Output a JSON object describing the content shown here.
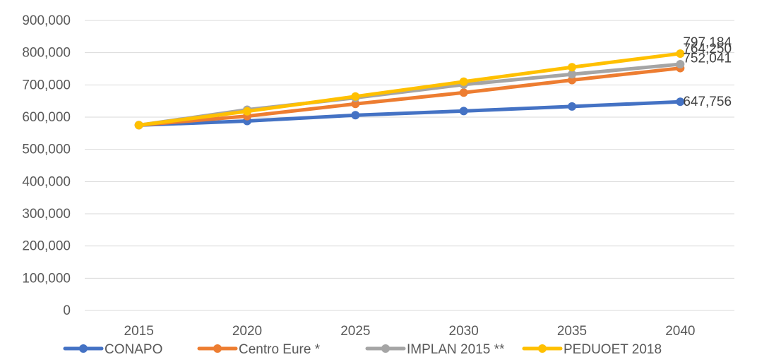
{
  "chart_data": {
    "type": "line",
    "x": [
      "2015",
      "2020",
      "2025",
      "2030",
      "2035",
      "2040"
    ],
    "ylim": [
      0,
      900000
    ],
    "yticks": [
      "0",
      "100,000",
      "200,000",
      "300,000",
      "400,000",
      "500,000",
      "600,000",
      "700,000",
      "800,000",
      "900,000"
    ],
    "grid": true,
    "legend_position": "bottom",
    "series": [
      {
        "name": "CONAPO",
        "color": "#4472c4",
        "values": [
          575000,
          588000,
          606000,
          619000,
          633000,
          647756
        ],
        "end_label": "647,756"
      },
      {
        "name": "Centro Eure *",
        "color": "#ed7d31",
        "values": [
          575000,
          603000,
          641000,
          676000,
          715000,
          752041
        ],
        "end_label": "752,041"
      },
      {
        "name": "IMPLAN 2015 **",
        "color": "#a5a5a5",
        "values": [
          575000,
          623000,
          660000,
          701000,
          733000,
          764250
        ],
        "end_label": "764,250"
      },
      {
        "name": "PEDUOET 2018",
        "color": "#ffc000",
        "values": [
          575000,
          618000,
          664000,
          710000,
          755000,
          797184
        ],
        "end_label": "797,184"
      }
    ]
  }
}
